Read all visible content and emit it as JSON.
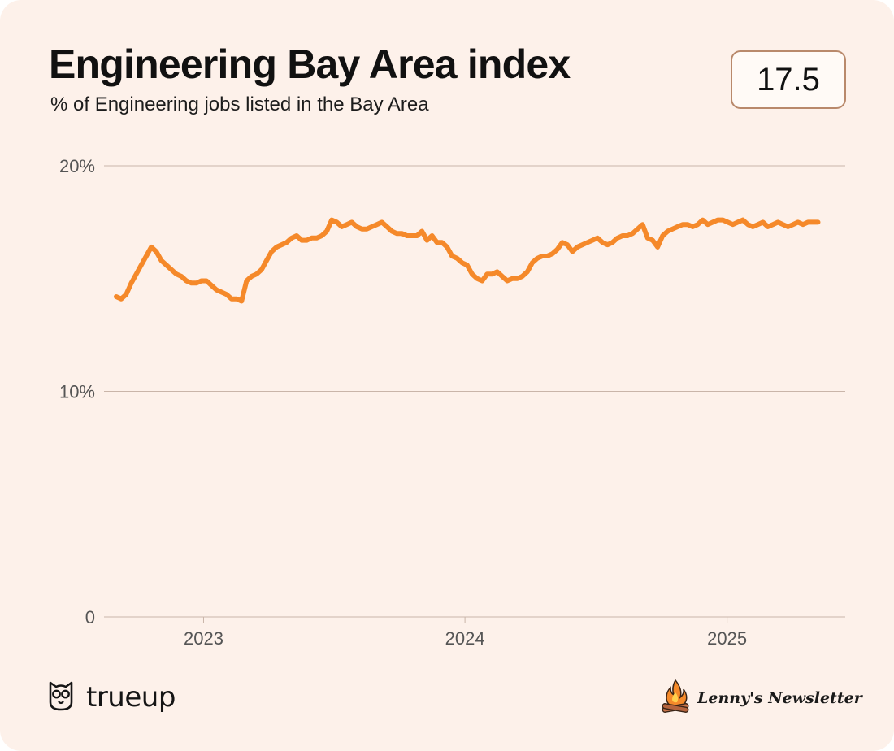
{
  "header": {
    "title": "Engineering Bay Area index",
    "subtitle": "% of Engineering jobs listed in the Bay Area",
    "current_value": "17.5"
  },
  "footer": {
    "brand": "trueup",
    "brand_icon": "owl-icon",
    "newsletter": "Lenny's Newsletter",
    "newsletter_icon": "campfire-icon"
  },
  "colors": {
    "background": "#fdf1ea",
    "line": "#f5892a",
    "grid": "#c9b5a9",
    "value_border": "#b9896b"
  },
  "chart_data": {
    "type": "line",
    "title": "Engineering Bay Area index",
    "subtitle": "% of Engineering jobs listed in the Bay Area",
    "xlabel": "",
    "ylabel": "",
    "xlim": [
      "2022-08-15",
      "2025-06-15"
    ],
    "ylim": [
      0,
      20
    ],
    "ytick_values": [
      0,
      10,
      20
    ],
    "yticks": [
      "0",
      "10%",
      "20%"
    ],
    "xtick_values": [
      "2023-01-01",
      "2024-01-01",
      "2025-01-01"
    ],
    "xticks": [
      "2023",
      "2024",
      "2025"
    ],
    "grid": "horizontal",
    "series": [
      {
        "color": "#f5892a",
        "x": [
          "2022-09-01",
          "2022-09-08",
          "2022-09-15",
          "2022-09-22",
          "2022-09-29",
          "2022-10-06",
          "2022-10-13",
          "2022-10-20",
          "2022-10-27",
          "2022-11-03",
          "2022-11-10",
          "2022-11-17",
          "2022-11-24",
          "2022-12-01",
          "2022-12-08",
          "2022-12-15",
          "2022-12-22",
          "2022-12-29",
          "2023-01-05",
          "2023-01-12",
          "2023-01-19",
          "2023-01-26",
          "2023-02-02",
          "2023-02-09",
          "2023-02-16",
          "2023-02-23",
          "2023-03-02",
          "2023-03-09",
          "2023-03-16",
          "2023-03-23",
          "2023-03-30",
          "2023-04-06",
          "2023-04-13",
          "2023-04-20",
          "2023-04-27",
          "2023-05-04",
          "2023-05-11",
          "2023-05-18",
          "2023-05-25",
          "2023-06-01",
          "2023-06-08",
          "2023-06-15",
          "2023-06-22",
          "2023-06-29",
          "2023-07-06",
          "2023-07-13",
          "2023-07-20",
          "2023-07-27",
          "2023-08-03",
          "2023-08-10",
          "2023-08-17",
          "2023-08-24",
          "2023-08-31",
          "2023-09-07",
          "2023-09-14",
          "2023-09-21",
          "2023-09-28",
          "2023-10-05",
          "2023-10-12",
          "2023-10-19",
          "2023-10-26",
          "2023-11-02",
          "2023-11-09",
          "2023-11-16",
          "2023-11-23",
          "2023-11-30",
          "2023-12-07",
          "2023-12-14",
          "2023-12-21",
          "2023-12-28",
          "2024-01-04",
          "2024-01-11",
          "2024-01-18",
          "2024-01-25",
          "2024-02-01",
          "2024-02-08",
          "2024-02-15",
          "2024-02-22",
          "2024-02-29",
          "2024-03-07",
          "2024-03-14",
          "2024-03-21",
          "2024-03-28",
          "2024-04-04",
          "2024-04-11",
          "2024-04-18",
          "2024-04-25",
          "2024-05-02",
          "2024-05-09",
          "2024-05-16",
          "2024-05-23",
          "2024-05-30",
          "2024-06-06",
          "2024-06-13",
          "2024-06-20",
          "2024-06-27",
          "2024-07-04",
          "2024-07-11",
          "2024-07-18",
          "2024-07-25",
          "2024-08-01",
          "2024-08-08",
          "2024-08-15",
          "2024-08-22",
          "2024-08-29",
          "2024-09-05",
          "2024-09-12",
          "2024-09-19",
          "2024-09-26",
          "2024-10-03",
          "2024-10-10",
          "2024-10-17",
          "2024-10-24",
          "2024-10-31",
          "2024-11-07",
          "2024-11-14",
          "2024-11-21",
          "2024-11-28",
          "2024-12-05",
          "2024-12-12",
          "2024-12-19",
          "2024-12-26",
          "2025-01-02",
          "2025-01-09",
          "2025-01-16",
          "2025-01-23",
          "2025-01-30",
          "2025-02-06",
          "2025-02-13",
          "2025-02-20",
          "2025-02-27",
          "2025-03-06",
          "2025-03-13",
          "2025-03-20",
          "2025-03-27",
          "2025-04-03",
          "2025-04-10",
          "2025-04-17",
          "2025-04-24",
          "2025-05-01",
          "2025-05-08"
        ],
        "values": [
          14.2,
          14.1,
          14.3,
          14.8,
          15.2,
          15.6,
          16.0,
          16.4,
          16.2,
          15.8,
          15.6,
          15.4,
          15.2,
          15.1,
          14.9,
          14.8,
          14.8,
          14.9,
          14.9,
          14.7,
          14.5,
          14.4,
          14.3,
          14.1,
          14.1,
          14.0,
          14.9,
          15.1,
          15.2,
          15.4,
          15.8,
          16.2,
          16.4,
          16.5,
          16.6,
          16.8,
          16.9,
          16.7,
          16.7,
          16.8,
          16.8,
          16.9,
          17.1,
          17.6,
          17.5,
          17.3,
          17.4,
          17.5,
          17.3,
          17.2,
          17.2,
          17.3,
          17.4,
          17.5,
          17.3,
          17.1,
          17.0,
          17.0,
          16.9,
          16.9,
          16.9,
          17.1,
          16.7,
          16.9,
          16.6,
          16.6,
          16.4,
          16.0,
          15.9,
          15.7,
          15.6,
          15.2,
          15.0,
          14.9,
          15.2,
          15.2,
          15.3,
          15.1,
          14.9,
          15.0,
          15.0,
          15.1,
          15.3,
          15.7,
          15.9,
          16.0,
          16.0,
          16.1,
          16.3,
          16.6,
          16.5,
          16.2,
          16.4,
          16.5,
          16.6,
          16.7,
          16.8,
          16.6,
          16.5,
          16.6,
          16.8,
          16.9,
          16.9,
          17.0,
          17.2,
          17.4,
          16.8,
          16.7,
          16.4,
          16.9,
          17.1,
          17.2,
          17.3,
          17.4,
          17.4,
          17.3,
          17.4,
          17.6,
          17.4,
          17.5,
          17.6,
          17.6,
          17.5,
          17.4,
          17.5,
          17.6,
          17.4,
          17.3,
          17.4,
          17.5,
          17.3,
          17.4,
          17.5,
          17.4,
          17.3,
          17.4,
          17.5,
          17.4,
          17.5,
          17.5,
          17.5
        ]
      }
    ]
  }
}
